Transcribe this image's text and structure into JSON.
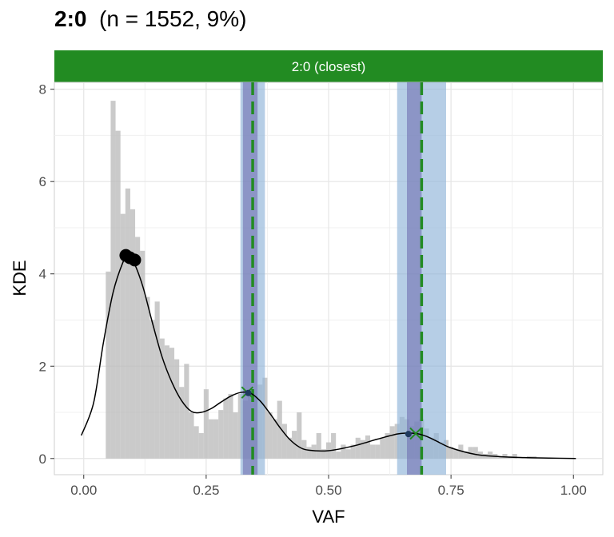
{
  "title": {
    "bold": "2:0",
    "rest": "(n = 1552, 9%)"
  },
  "colors": {
    "strip": "#228B22",
    "histogram": "#bdbdbd",
    "ci_outer": "#8fb3d9",
    "ci_inner": "#6f6fb0",
    "expected_line": "#228B22",
    "density": "#000000",
    "peak": "#000000",
    "fit_point": "#1f3a5f",
    "grid": "#e5e5e5"
  },
  "chart_data": {
    "type": "histogram",
    "facet_label": "2:0 (closest)",
    "xlabel": "VAF",
    "ylabel": "KDE",
    "xlim": [
      -0.06,
      1.06
    ],
    "ylim": [
      -0.35,
      8.15
    ],
    "x_ticks": [
      0,
      0.25,
      0.5,
      0.75,
      1
    ],
    "x_tick_labels": [
      "0.00",
      "0.25",
      "0.50",
      "0.75",
      "1.00"
    ],
    "y_ticks": [
      0,
      2,
      4,
      6,
      8
    ],
    "y_tick_labels": [
      "0",
      "2",
      "4",
      "6",
      "8"
    ],
    "histogram": {
      "bin_width": 0.01,
      "bin_starts": [
        0.045,
        0.055,
        0.065,
        0.075,
        0.085,
        0.095,
        0.105,
        0.115,
        0.125,
        0.135,
        0.145,
        0.155,
        0.165,
        0.175,
        0.185,
        0.195,
        0.205,
        0.215,
        0.225,
        0.235,
        0.245,
        0.255,
        0.265,
        0.275,
        0.285,
        0.295,
        0.305,
        0.315,
        0.325,
        0.335,
        0.345,
        0.355,
        0.365,
        0.375,
        0.385,
        0.395,
        0.405,
        0.415,
        0.425,
        0.435,
        0.445,
        0.455,
        0.465,
        0.475,
        0.485,
        0.495,
        0.505,
        0.515,
        0.525,
        0.535,
        0.545,
        0.555,
        0.565,
        0.575,
        0.585,
        0.595,
        0.605,
        0.615,
        0.625,
        0.635,
        0.645,
        0.655,
        0.665,
        0.675,
        0.685,
        0.695,
        0.705,
        0.715,
        0.725,
        0.735,
        0.745,
        0.755,
        0.765,
        0.775,
        0.785,
        0.795,
        0.805,
        0.815,
        0.825,
        0.835,
        0.845,
        0.855,
        0.865,
        0.875,
        0.885,
        0.895,
        0.905,
        0.915
      ],
      "values": [
        4.05,
        7.75,
        7.1,
        5.3,
        5.85,
        5.4,
        4.8,
        4.5,
        3.5,
        3.0,
        3.4,
        2.6,
        2.45,
        2.4,
        2.15,
        1.55,
        2.05,
        1.0,
        0.7,
        0.55,
        1.5,
        0.85,
        0.85,
        1.05,
        1.3,
        1.4,
        1.0,
        1.4,
        1.25,
        1.35,
        1.35,
        1.6,
        1.75,
        1.0,
        0.85,
        1.25,
        0.75,
        0.45,
        0.6,
        1.0,
        0.4,
        0.25,
        0.3,
        0.55,
        0.2,
        0.35,
        0.55,
        0.15,
        0.3,
        0.2,
        0.3,
        0.45,
        0.4,
        0.5,
        0.3,
        0.3,
        0.45,
        0.55,
        0.7,
        0.75,
        0.9,
        0.85,
        0.7,
        0.8,
        0.85,
        0.65,
        0.45,
        0.55,
        0.35,
        0.4,
        0.25,
        0.2,
        0.3,
        0.15,
        0.25,
        0.25,
        0.15,
        0.1,
        0.15,
        0.1,
        0.05,
        0.1,
        0.05,
        0.1,
        0.0,
        0.0,
        0.05,
        0.05
      ]
    },
    "density_curve": {
      "x": [
        -0.005,
        0.02,
        0.04,
        0.06,
        0.08,
        0.09,
        0.1,
        0.12,
        0.14,
        0.16,
        0.18,
        0.2,
        0.22,
        0.24,
        0.26,
        0.28,
        0.3,
        0.32,
        0.34,
        0.36,
        0.38,
        0.4,
        0.42,
        0.44,
        0.46,
        0.5,
        0.55,
        0.6,
        0.64,
        0.66,
        0.68,
        0.7,
        0.72,
        0.75,
        0.8,
        0.85,
        0.9,
        0.95,
        1.005
      ],
      "y": [
        0.5,
        1.2,
        2.5,
        3.6,
        4.25,
        4.38,
        4.3,
        3.75,
        2.95,
        2.2,
        1.65,
        1.25,
        1.02,
        1.0,
        1.08,
        1.22,
        1.35,
        1.43,
        1.42,
        1.25,
        0.98,
        0.68,
        0.42,
        0.25,
        0.18,
        0.17,
        0.27,
        0.42,
        0.53,
        0.55,
        0.54,
        0.48,
        0.38,
        0.23,
        0.09,
        0.04,
        0.02,
        0.01,
        0.0
      ]
    },
    "peaks": [
      {
        "x": 0.086,
        "y": 4.4
      },
      {
        "x": 0.094,
        "y": 4.35
      },
      {
        "x": 0.104,
        "y": 4.3
      }
    ],
    "clusters": [
      {
        "expected_vaf": 0.345,
        "outer_range": [
          0.32,
          0.37
        ],
        "inner_range": [
          0.325,
          0.355
        ],
        "fit_point": {
          "x": 0.336,
          "y": 1.42
        },
        "cross": {
          "x": 0.334,
          "y": 1.43
        }
      },
      {
        "expected_vaf": 0.69,
        "outer_range": [
          0.64,
          0.74
        ],
        "inner_range": [
          0.66,
          0.69
        ],
        "fit_point": {
          "x": 0.663,
          "y": 0.53
        },
        "cross": {
          "x": 0.678,
          "y": 0.54
        }
      }
    ]
  }
}
